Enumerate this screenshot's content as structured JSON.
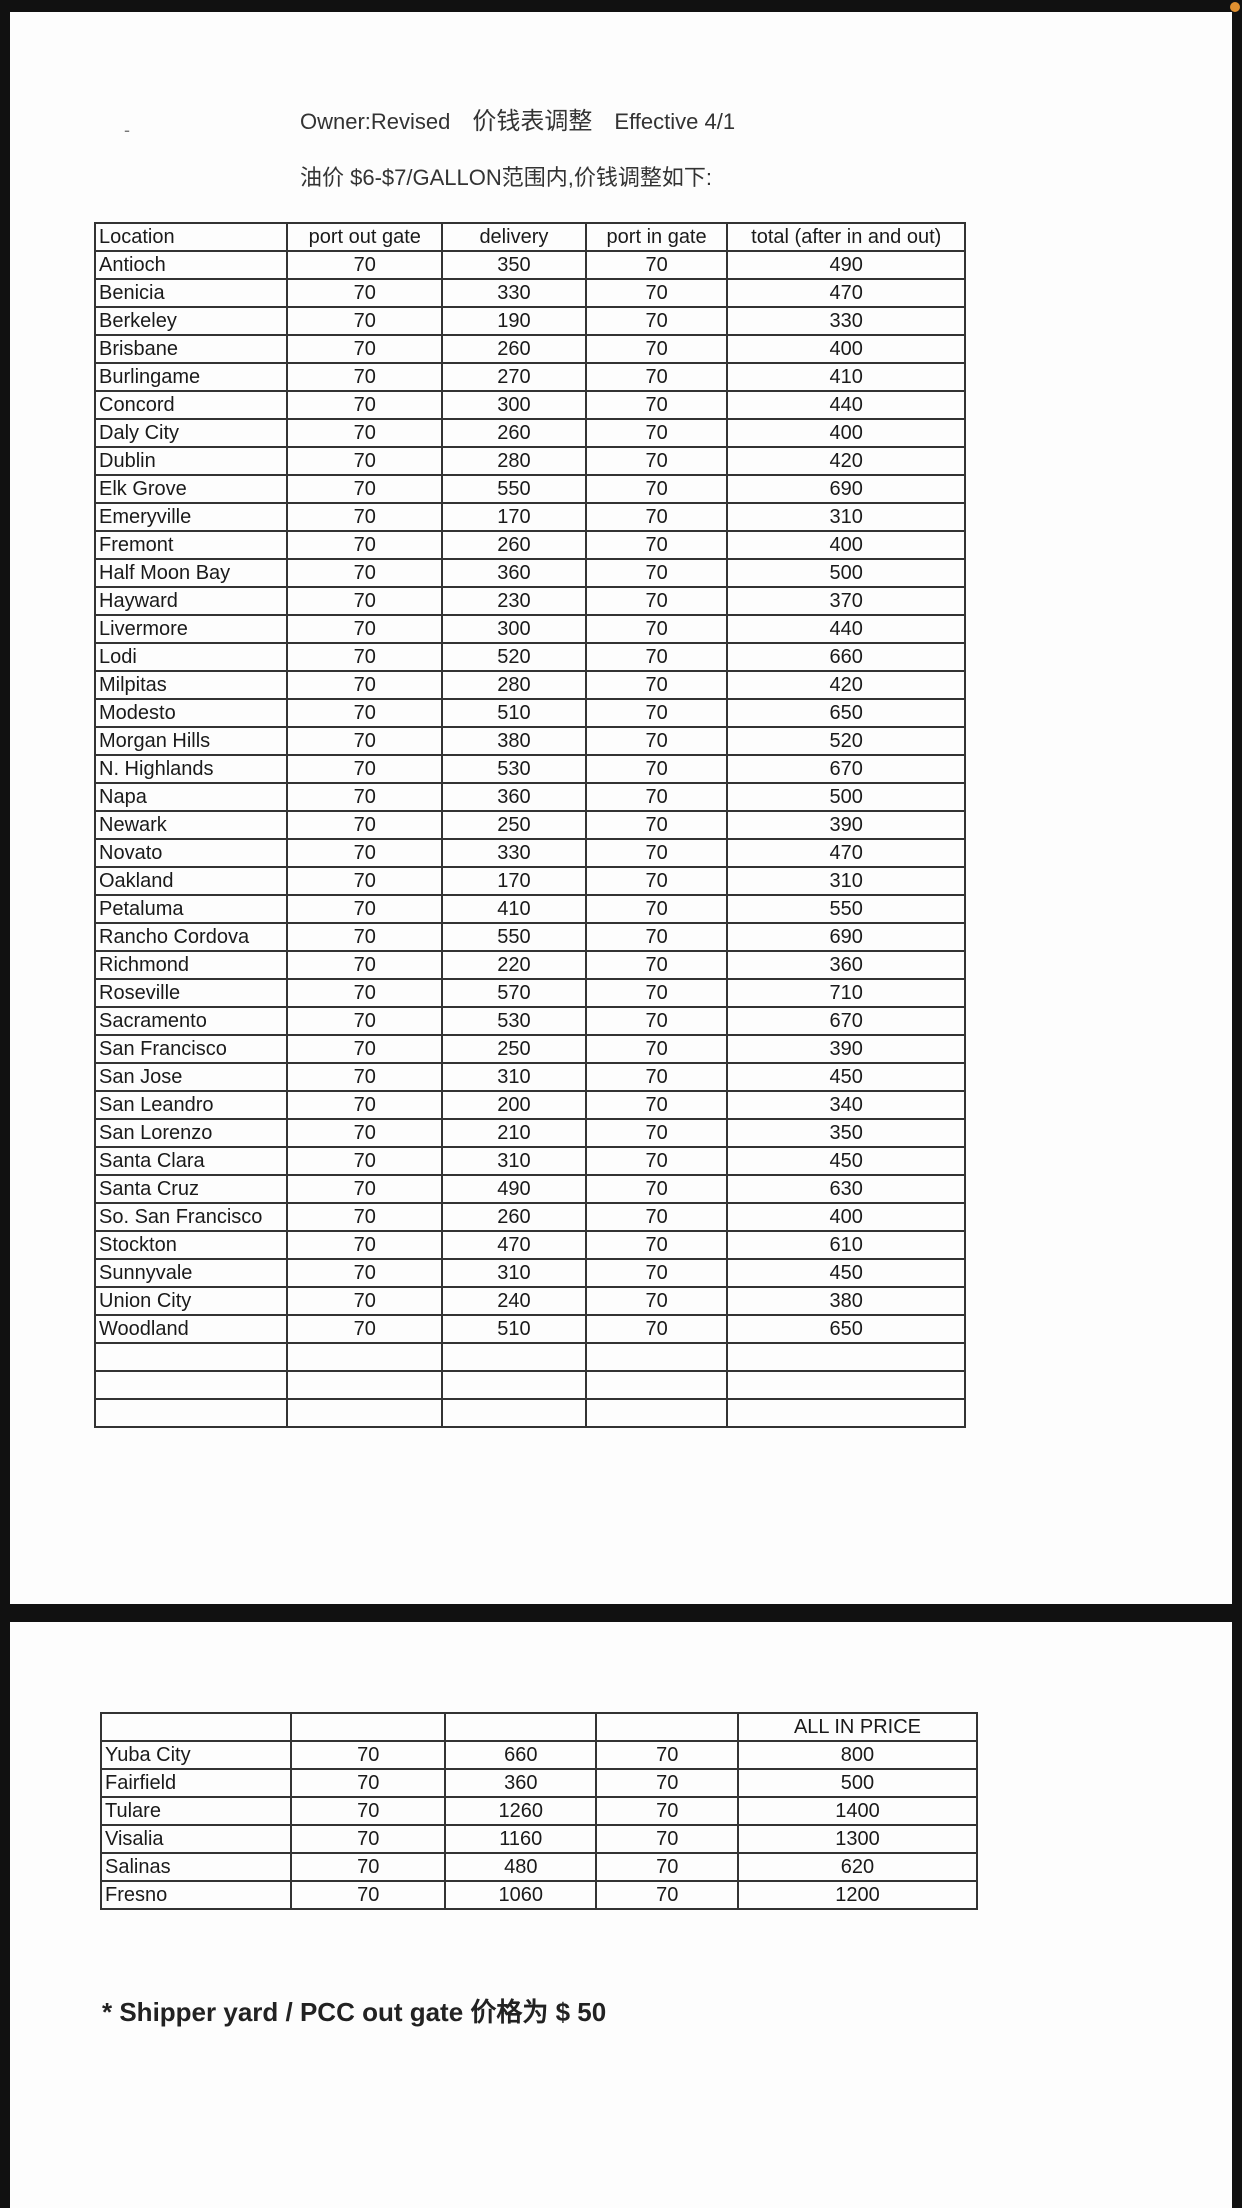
{
  "header": {
    "marker": "-",
    "owner": "Owner:Revised",
    "title_cn": "价钱表调整",
    "effective": "Effective 4/1",
    "subtitle": "油价 $6-$7/GALLON范围内,价钱调整如下:"
  },
  "table1": {
    "columns": [
      "Location",
      "port out gate",
      "delivery",
      "port in gate",
      "total (after in and out)"
    ],
    "rows": [
      [
        "Antioch",
        "70",
        "350",
        "70",
        "490"
      ],
      [
        "Benicia",
        "70",
        "330",
        "70",
        "470"
      ],
      [
        "Berkeley",
        "70",
        "190",
        "70",
        "330"
      ],
      [
        "Brisbane",
        "70",
        "260",
        "70",
        "400"
      ],
      [
        "Burlingame",
        "70",
        "270",
        "70",
        "410"
      ],
      [
        "Concord",
        "70",
        "300",
        "70",
        "440"
      ],
      [
        "Daly City",
        "70",
        "260",
        "70",
        "400"
      ],
      [
        "Dublin",
        "70",
        "280",
        "70",
        "420"
      ],
      [
        "Elk Grove",
        "70",
        "550",
        "70",
        "690"
      ],
      [
        "Emeryville",
        "70",
        "170",
        "70",
        "310"
      ],
      [
        "Fremont",
        "70",
        "260",
        "70",
        "400"
      ],
      [
        "Half Moon Bay",
        "70",
        "360",
        "70",
        "500"
      ],
      [
        "Hayward",
        "70",
        "230",
        "70",
        "370"
      ],
      [
        "Livermore",
        "70",
        "300",
        "70",
        "440"
      ],
      [
        "Lodi",
        "70",
        "520",
        "70",
        "660"
      ],
      [
        "Milpitas",
        "70",
        "280",
        "70",
        "420"
      ],
      [
        "Modesto",
        "70",
        "510",
        "70",
        "650"
      ],
      [
        "Morgan Hills",
        "70",
        "380",
        "70",
        "520"
      ],
      [
        "N. Highlands",
        "70",
        "530",
        "70",
        "670"
      ],
      [
        "Napa",
        "70",
        "360",
        "70",
        "500"
      ],
      [
        "Newark",
        "70",
        "250",
        "70",
        "390"
      ],
      [
        "Novato",
        "70",
        "330",
        "70",
        "470"
      ],
      [
        "Oakland",
        "70",
        "170",
        "70",
        "310"
      ],
      [
        "Petaluma",
        "70",
        "410",
        "70",
        "550"
      ],
      [
        "Rancho Cordova",
        "70",
        "550",
        "70",
        "690"
      ],
      [
        "Richmond",
        "70",
        "220",
        "70",
        "360"
      ],
      [
        "Roseville",
        "70",
        "570",
        "70",
        "710"
      ],
      [
        "Sacramento",
        "70",
        "530",
        "70",
        "670"
      ],
      [
        "San Francisco",
        "70",
        "250",
        "70",
        "390"
      ],
      [
        "San Jose",
        "70",
        "310",
        "70",
        "450"
      ],
      [
        "San Leandro",
        "70",
        "200",
        "70",
        "340"
      ],
      [
        "San Lorenzo",
        "70",
        "210",
        "70",
        "350"
      ],
      [
        "Santa Clara",
        "70",
        "310",
        "70",
        "450"
      ],
      [
        "Santa Cruz",
        "70",
        "490",
        "70",
        "630"
      ],
      [
        "So. San Francisco",
        "70",
        "260",
        "70",
        "400"
      ],
      [
        "Stockton",
        "70",
        "470",
        "70",
        "610"
      ],
      [
        "Sunnyvale",
        "70",
        "310",
        "70",
        "450"
      ],
      [
        "Union City",
        "70",
        "240",
        "70",
        "380"
      ],
      [
        "Woodland",
        "70",
        "510",
        "70",
        "650"
      ],
      [
        "",
        "",
        "",
        "",
        ""
      ],
      [
        "",
        "",
        "",
        "",
        ""
      ],
      [
        "",
        "",
        "",
        "",
        ""
      ]
    ]
  },
  "table2": {
    "columns": [
      "",
      "",
      "",
      "",
      "ALL IN PRICE"
    ],
    "rows": [
      [
        "Yuba City",
        "70",
        "660",
        "70",
        "800"
      ],
      [
        "Fairfield",
        "70",
        "360",
        "70",
        "500"
      ],
      [
        "Tulare",
        "70",
        "1260",
        "70",
        "1400"
      ],
      [
        "Visalia",
        "70",
        "1160",
        "70",
        "1300"
      ],
      [
        "Salinas",
        "70",
        "480",
        "70",
        "620"
      ],
      [
        "Fresno",
        "70",
        "1060",
        "70",
        "1200"
      ]
    ]
  },
  "footnote": "* Shipper yard / PCC out gate 价格为 $ 50"
}
